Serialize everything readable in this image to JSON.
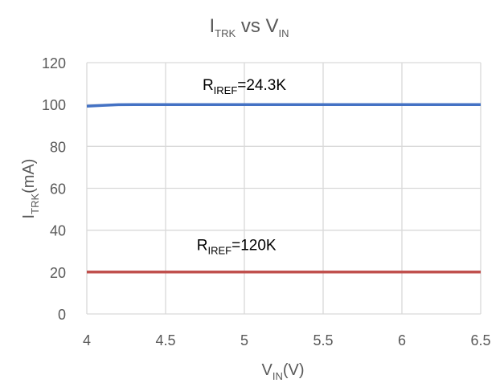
{
  "chart_data": {
    "type": "line",
    "title": {
      "main": "I",
      "sub": "TRK",
      "mid": " vs V",
      "sub2": "IN"
    },
    "xlabel": {
      "main": "V",
      "sub": "IN",
      "rest": "(V)"
    },
    "ylabel": {
      "main": "I",
      "sub": "TRK",
      "rest": "(mA)"
    },
    "xlim": [
      4,
      6.5
    ],
    "ylim": [
      0,
      120
    ],
    "x_ticks": [
      "4",
      "4.5",
      "5",
      "5.5",
      "6",
      "6.5"
    ],
    "y_ticks": [
      "0",
      "20",
      "40",
      "60",
      "80",
      "100",
      "120"
    ],
    "grid": true,
    "series": [
      {
        "color": "#4472C4",
        "x": [
          4.0,
          4.1,
          4.2,
          4.3,
          4.4,
          4.5,
          5.0,
          5.5,
          6.0,
          6.5
        ],
        "y": [
          99.2,
          99.6,
          99.9,
          100.0,
          100.0,
          100.0,
          100.0,
          100.0,
          100.0,
          100.0
        ]
      },
      {
        "color": "#C0504D",
        "x": [
          4.0,
          4.5,
          5.0,
          5.5,
          6.0,
          6.5
        ],
        "y": [
          20,
          20,
          20,
          20,
          20,
          20
        ]
      }
    ],
    "annotations": [
      {
        "main": "R",
        "sub": "IREF",
        "rest": "=24.3K",
        "x": 5.0,
        "y": 107
      },
      {
        "main": "R",
        "sub": "IREF",
        "rest": "=120K",
        "x": 4.95,
        "y": 30.5
      }
    ]
  }
}
